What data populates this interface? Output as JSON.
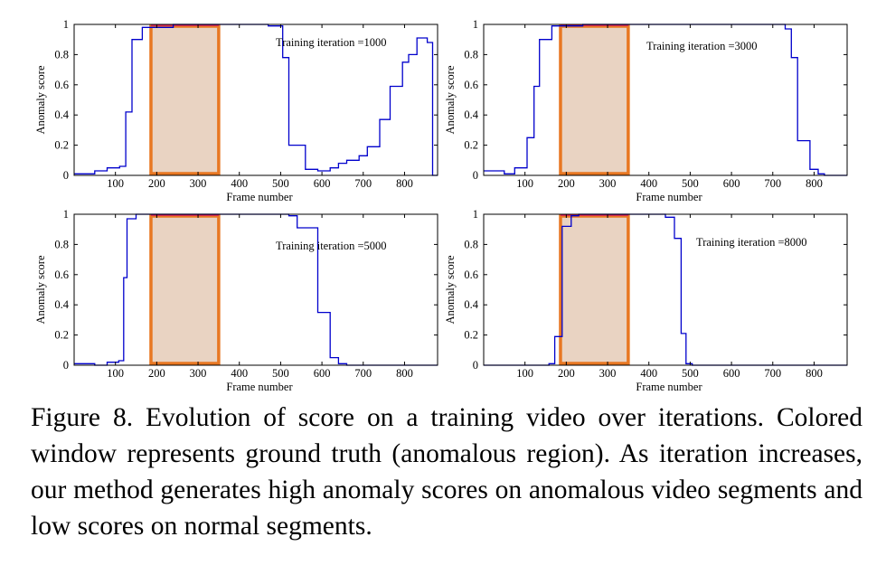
{
  "caption": "Figure 8. Evolution of score on a training video over iterations. Colored window represents ground truth (anomalous region). As iteration increases, our method generates high anomaly scores on anomalous video segments and low scores on normal segments.",
  "colors": {
    "curve": "#0000cc",
    "window_fill": "#e9d3c2",
    "window_stroke": "#e87722",
    "window_top": "#d81b60",
    "axes": "#000000"
  },
  "chart_data": [
    {
      "type": "line",
      "annotation": "Training iteration =1000",
      "xlabel": "Frame number",
      "ylabel": "Anomaly score",
      "xlim": [
        0,
        880
      ],
      "ylim": [
        0,
        1
      ],
      "xticks": [
        100,
        200,
        300,
        400,
        500,
        600,
        700,
        800
      ],
      "yticks": [
        0,
        0.2,
        0.4,
        0.6,
        0.8,
        1
      ],
      "ytick_labels": [
        "0",
        "0.2",
        "0.4",
        "0.6",
        "0.8",
        "1"
      ],
      "ground_truth_window": [
        186,
        350
      ],
      "step_x": [
        0,
        30,
        50,
        80,
        110,
        125,
        140,
        165,
        240,
        300,
        470,
        490,
        505,
        520,
        545,
        560,
        590,
        600,
        620,
        640,
        660,
        690,
        710,
        740,
        765,
        795,
        810,
        830,
        855,
        868,
        880
      ],
      "step_y": [
        0.01,
        0.01,
        0.03,
        0.05,
        0.06,
        0.42,
        0.9,
        0.98,
        1.0,
        1.0,
        0.99,
        0.99,
        0.78,
        0.2,
        0.2,
        0.04,
        0.03,
        0.03,
        0.05,
        0.08,
        0.1,
        0.13,
        0.19,
        0.37,
        0.59,
        0.75,
        0.8,
        0.91,
        0.88,
        0.0,
        0.0
      ]
    },
    {
      "type": "line",
      "annotation": "Training iteration =3000",
      "xlabel": "Frame number",
      "ylabel": "Anomaly score",
      "xlim": [
        0,
        880
      ],
      "ylim": [
        0,
        1
      ],
      "xticks": [
        100,
        200,
        300,
        400,
        500,
        600,
        700,
        800
      ],
      "yticks": [
        0,
        0.2,
        0.4,
        0.6,
        0.8,
        1
      ],
      "ytick_labels": [
        "0",
        "0.2",
        "0.4",
        "0.6",
        "0.8",
        "1"
      ],
      "ground_truth_window": [
        186,
        350
      ],
      "step_x": [
        0,
        30,
        50,
        75,
        105,
        122,
        135,
        165,
        240,
        300,
        720,
        730,
        745,
        760,
        790,
        810,
        825,
        880
      ],
      "step_y": [
        0.03,
        0.03,
        0.01,
        0.05,
        0.25,
        0.59,
        0.9,
        0.99,
        1.0,
        1.0,
        1.0,
        0.97,
        0.78,
        0.23,
        0.04,
        0.01,
        0.0,
        0.0
      ]
    },
    {
      "type": "line",
      "annotation": "Training iteration =5000",
      "xlabel": "Frame number",
      "ylabel": "Anomaly score",
      "xlim": [
        0,
        880
      ],
      "ylim": [
        0,
        1
      ],
      "xticks": [
        100,
        200,
        300,
        400,
        500,
        600,
        700,
        800
      ],
      "yticks": [
        0,
        0.2,
        0.4,
        0.6,
        0.8,
        1
      ],
      "ytick_labels": [
        "0",
        "0.2",
        "0.4",
        "0.6",
        "0.8",
        "1"
      ],
      "ground_truth_window": [
        186,
        350
      ],
      "step_x": [
        0,
        30,
        50,
        80,
        108,
        120,
        128,
        150,
        250,
        300,
        500,
        520,
        540,
        590,
        620,
        640,
        660,
        700,
        880
      ],
      "step_y": [
        0.01,
        0.01,
        0.0,
        0.02,
        0.03,
        0.58,
        0.97,
        1.0,
        1.0,
        1.0,
        1.0,
        0.99,
        0.91,
        0.35,
        0.05,
        0.01,
        0.0,
        0.0,
        0.0
      ]
    },
    {
      "type": "line",
      "annotation": "Training iteration =8000",
      "xlabel": "Frame number",
      "ylabel": "Anomaly score",
      "xlim": [
        0,
        880
      ],
      "ylim": [
        0,
        1
      ],
      "xticks": [
        100,
        200,
        300,
        400,
        500,
        600,
        700,
        800
      ],
      "yticks": [
        0,
        0.2,
        0.4,
        0.6,
        0.8,
        1
      ],
      "ytick_labels": [
        "0",
        "0.2",
        "0.4",
        "0.6",
        "0.8",
        "1"
      ],
      "ground_truth_window": [
        186,
        350
      ],
      "step_x": [
        0,
        130,
        158,
        172,
        190,
        212,
        230,
        290,
        400,
        440,
        462,
        478,
        490,
        505,
        520,
        880
      ],
      "step_y": [
        0.0,
        0.0,
        0.01,
        0.19,
        0.92,
        0.99,
        1.0,
        1.0,
        1.0,
        0.98,
        0.84,
        0.21,
        0.01,
        0.0,
        0.0,
        0.0
      ]
    }
  ]
}
